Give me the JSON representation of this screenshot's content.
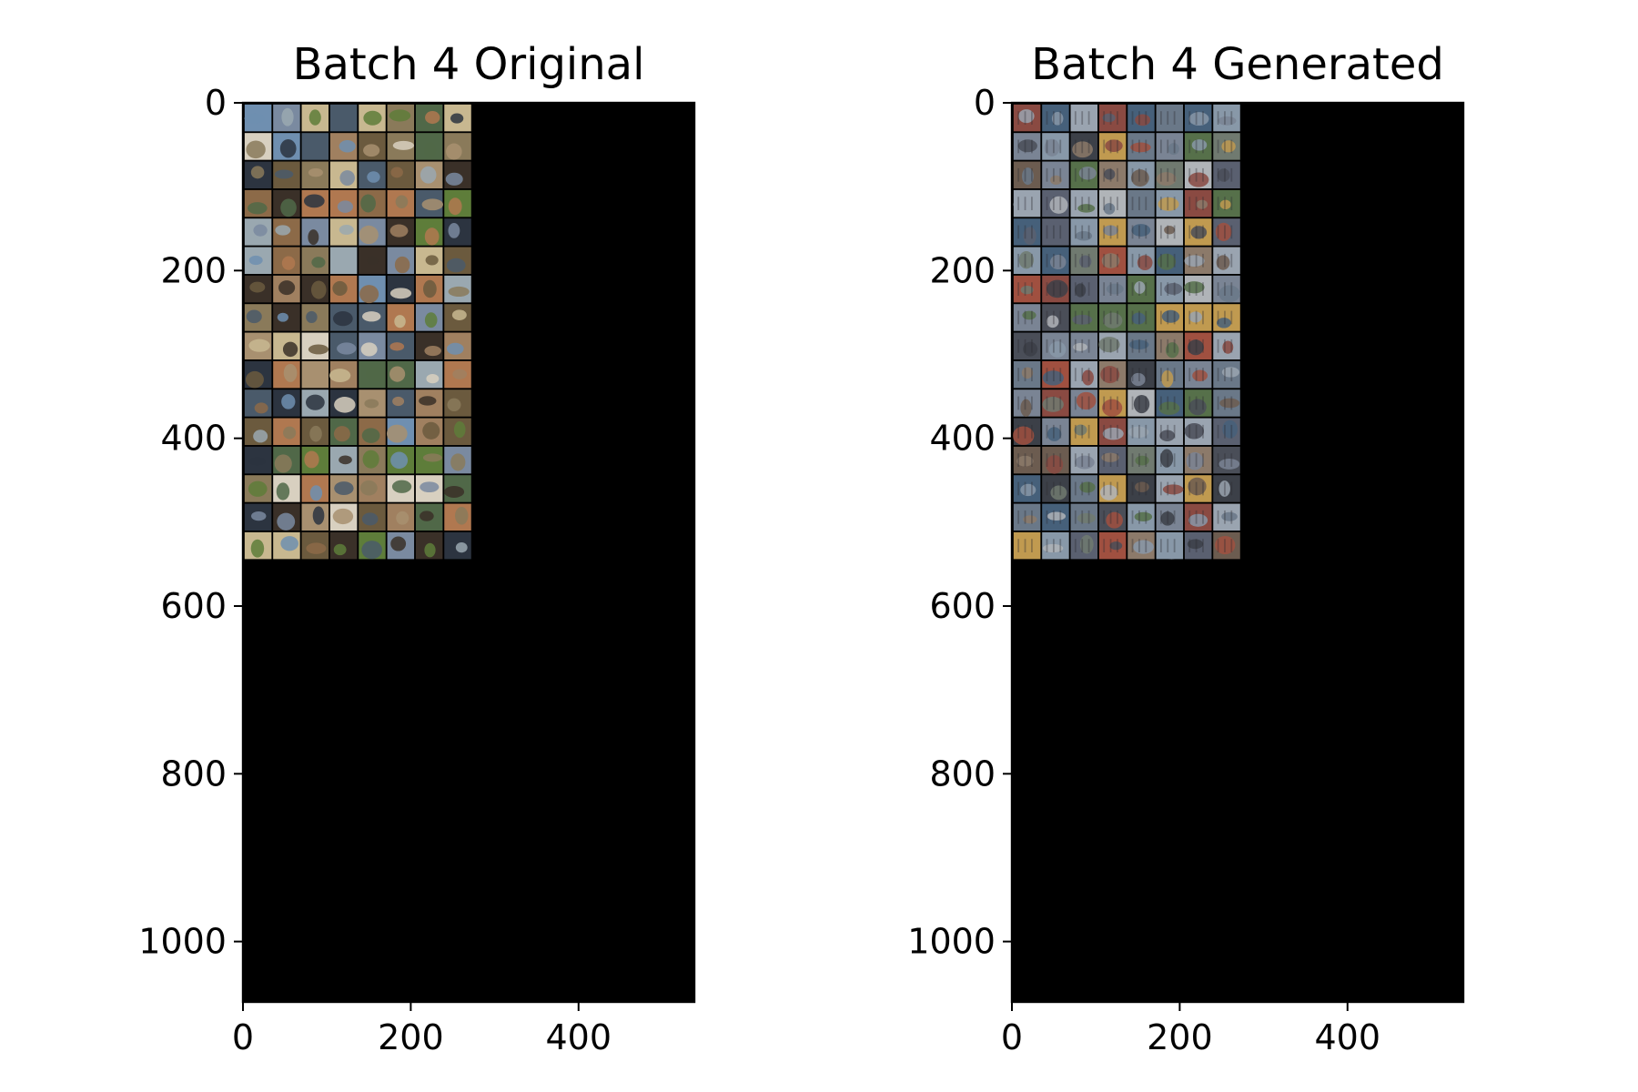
{
  "chart_data": [
    {
      "type": "heatmap",
      "title": "Batch 4 Original",
      "xlabel": "",
      "ylabel": "",
      "xlim": [
        0,
        538
      ],
      "ylim": [
        1072,
        0
      ],
      "x_ticks": [
        0,
        200,
        400
      ],
      "y_ticks": [
        0,
        200,
        400,
        600,
        800,
        1000
      ],
      "grid": {
        "rows": 16,
        "cols": 8,
        "tile_px": 32,
        "padding_px": 2
      },
      "content": "image grid of 128 CIFAR-10 sample images"
    },
    {
      "type": "heatmap",
      "title": "Batch 4 Generated",
      "xlabel": "",
      "ylabel": "",
      "xlim": [
        0,
        538
      ],
      "ylim": [
        1072,
        0
      ],
      "x_ticks": [
        0,
        200,
        400
      ],
      "y_ticks": [
        0,
        200,
        400,
        600,
        800,
        1000
      ],
      "grid": {
        "rows": 16,
        "cols": 8,
        "tile_px": 32,
        "padding_px": 2
      },
      "content": "image grid of 128 generated samples"
    }
  ],
  "palettes": {
    "original": [
      "#6b5a3e",
      "#8a7a5a",
      "#5e7d3a",
      "#a08060",
      "#4a5a6a",
      "#7a8aa0",
      "#c8b890",
      "#3a3028",
      "#9aa8b0",
      "#b07850",
      "#506848",
      "#d8d0c0",
      "#2c3440",
      "#8c6a48",
      "#6f8fb0",
      "#a89070"
    ],
    "generated": [
      "#5a6070",
      "#7a8494",
      "#4a4e58",
      "#8c7a6a",
      "#6a7888",
      "#9aa4b0",
      "#3c4048",
      "#a05040",
      "#56704a",
      "#8898a8",
      "#b0b4b8",
      "#6c5c50",
      "#46607a",
      "#c09a50",
      "#8a4a42",
      "#707a70"
    ]
  }
}
